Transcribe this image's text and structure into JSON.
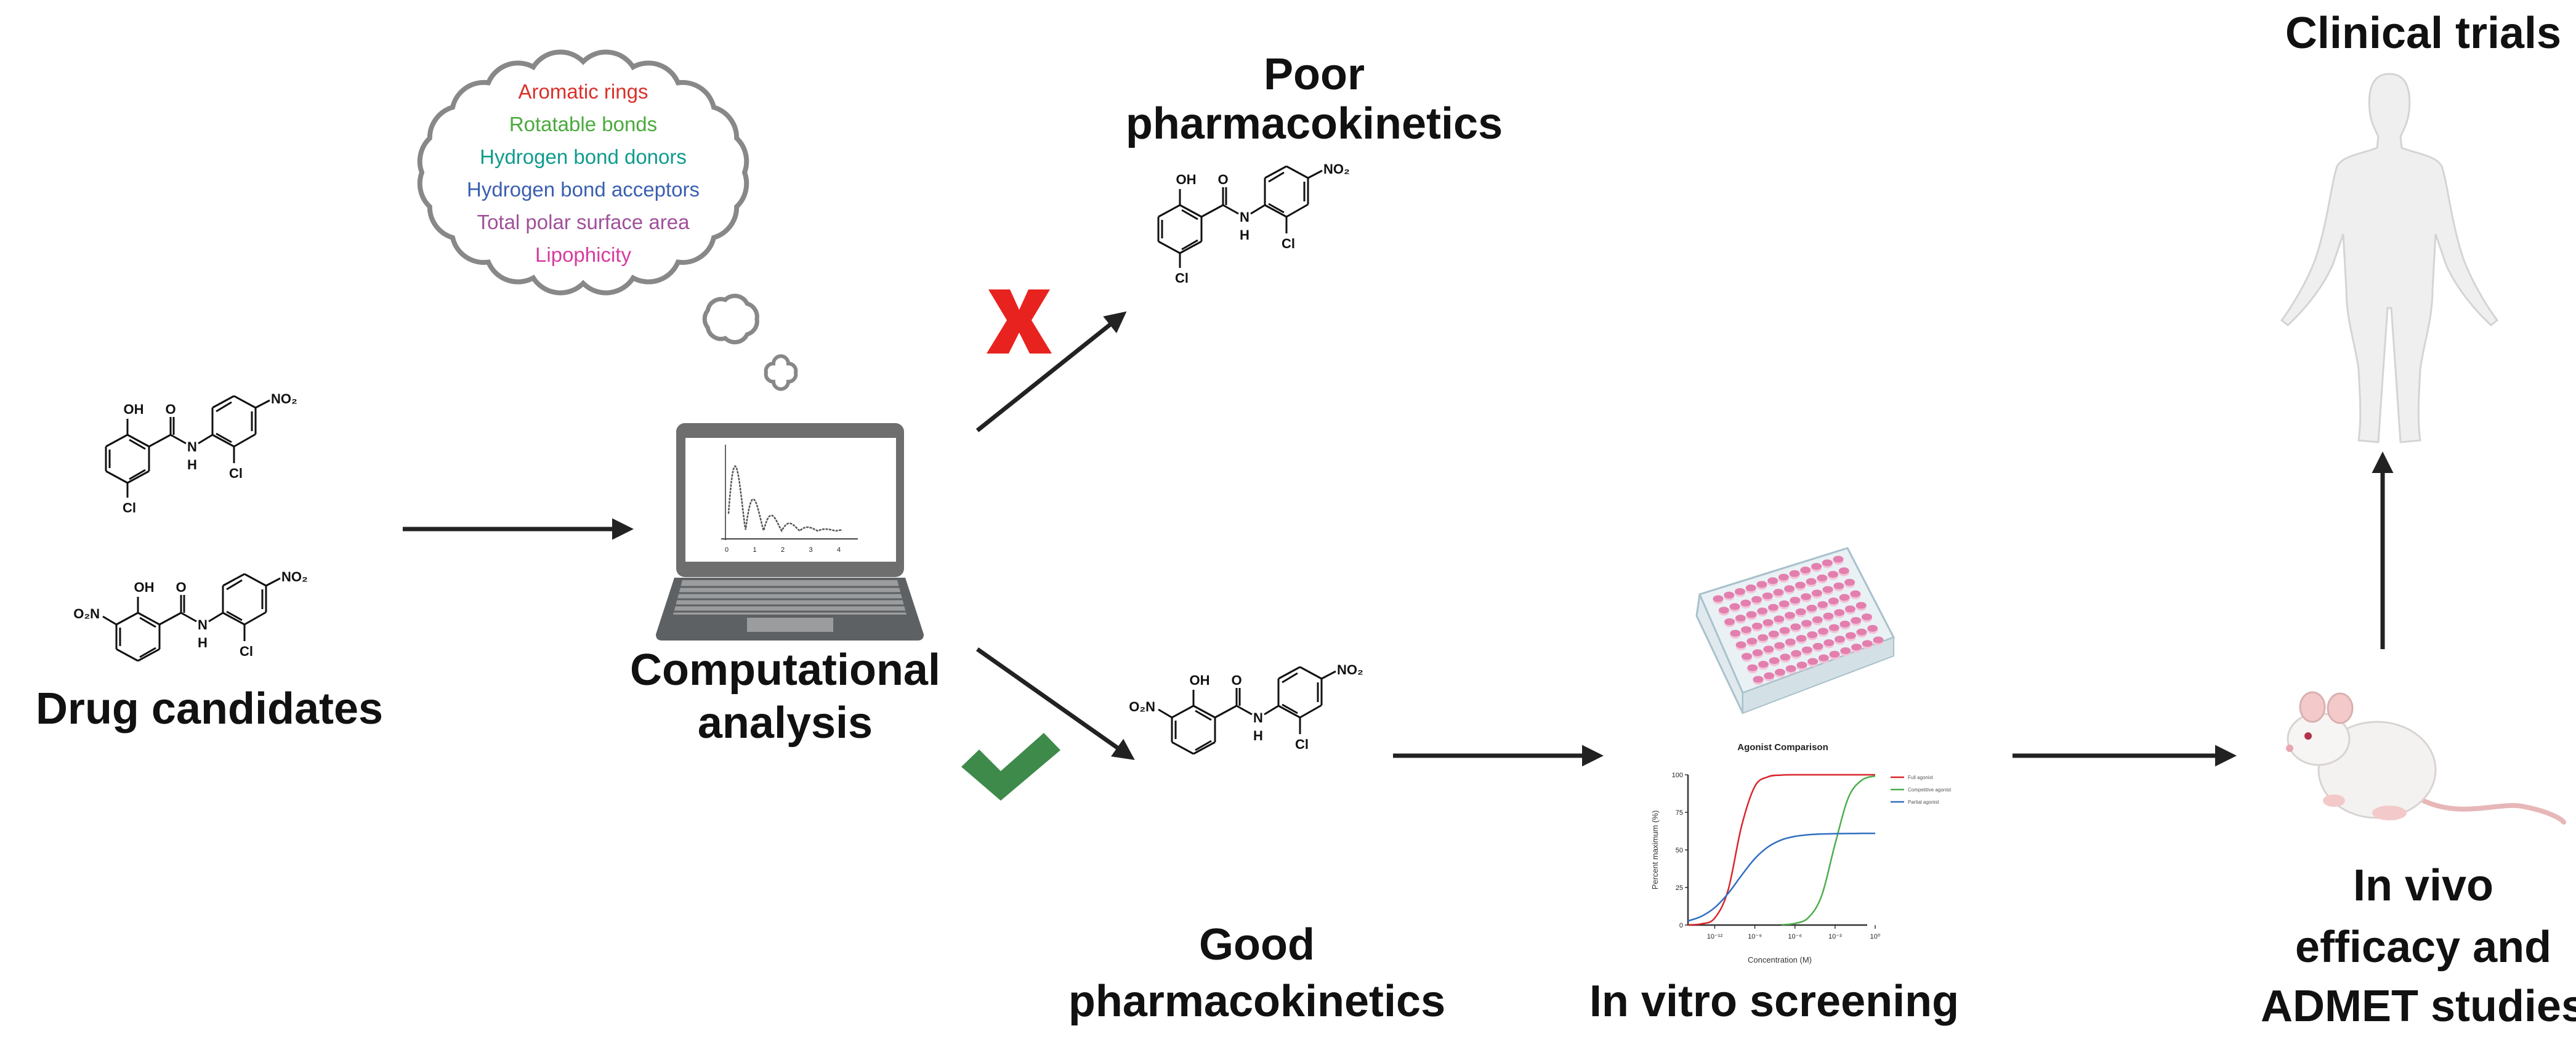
{
  "labels": {
    "drug_candidates": "Drug candidates",
    "computational_1": "Computational",
    "computational_2": "analysis",
    "poor_1": "Poor",
    "poor_2": "pharmacokinetics",
    "good_1": "Good",
    "good_2": "pharmacokinetics",
    "in_vitro": "In vitro screening",
    "in_vivo_1": "In vivo",
    "in_vivo_2": "efficacy and",
    "in_vivo_3": "ADMET studies",
    "clinical": "Clinical trials"
  },
  "cloud": {
    "items": [
      {
        "text": "Aromatic rings",
        "color": "#d9312b"
      },
      {
        "text": "Rotatable bonds",
        "color": "#4aaa3c"
      },
      {
        "text": "Hydrogen bond donors",
        "color": "#0f9b8e"
      },
      {
        "text": "Hydrogen bond acceptors",
        "color": "#3a5fb0"
      },
      {
        "text": "Total polar surface area",
        "color": "#a0509a"
      },
      {
        "text": "Lipophicity",
        "color": "#d63c9e"
      }
    ]
  },
  "marks": {
    "reject_icon": "red-x",
    "reject_color": "#e8231f",
    "accept_icon": "check-mark",
    "accept_color": "#3e8a4a"
  },
  "molecules": {
    "atoms": {
      "OH": "OH",
      "O": "O",
      "N": "N",
      "H": "H",
      "Cl": "Cl",
      "NO2": "NO₂",
      "O2N": "O₂N"
    },
    "candidate_1": "5-chloro variant",
    "candidate_2": "3-nitro variant"
  },
  "laptop_plot": {
    "ticks": [
      "0",
      "1",
      "2",
      "3",
      "4"
    ]
  },
  "chart_data": {
    "type": "line",
    "title": "Agonist Comparison",
    "xlabel": "Concentration (M)",
    "ylabel": "Percent maximum (%)",
    "xscale": "log",
    "xlim": [
      1e-14,
      1
    ],
    "ylim": [
      0,
      100
    ],
    "xticks": [
      1e-12,
      1e-09,
      1e-06,
      0.001,
      1
    ],
    "xtick_labels": [
      "10⁻¹²",
      "10⁻⁹",
      "10⁻⁶",
      "10⁻³",
      "10⁰"
    ],
    "yticks": [
      0,
      25,
      50,
      75,
      100
    ],
    "grid": false,
    "legend_position": "top-right",
    "series": [
      {
        "name": "Full agonist",
        "color": "#d9252b",
        "x": [
          1e-14,
          1e-13,
          1e-12,
          1e-11,
          1e-10,
          1e-09,
          1e-08,
          1e-07,
          1e-06,
          1e-05,
          0.0001,
          0.001,
          0.01,
          0.1,
          1
        ],
        "y": [
          0.1,
          0.8,
          4.6,
          23.2,
          65.6,
          92.3,
          98.7,
          99.8,
          100,
          100,
          100,
          100,
          100,
          100,
          100
        ]
      },
      {
        "name": "Competitive agonist",
        "color": "#4cae4c",
        "x": [
          1e-07,
          1e-06,
          1e-05,
          0.0001,
          0.001,
          0.01,
          0.1,
          1
        ],
        "y": [
          0.2,
          1.1,
          4.9,
          19.6,
          53.9,
          84.9,
          96.4,
          99.2
        ]
      },
      {
        "name": "Partial agonist",
        "color": "#2f6fc0",
        "x": [
          1e-14,
          1e-13,
          1e-12,
          1e-11,
          1e-10,
          1e-09,
          1e-08,
          1e-07,
          1e-06,
          1e-05,
          0.0001,
          0.001,
          0.01,
          0.1,
          1
        ],
        "y": [
          2.7,
          5.8,
          11.6,
          21.0,
          33.0,
          44.2,
          52.1,
          56.7,
          59.0,
          60.1,
          60.6,
          60.8,
          60.9,
          61,
          61
        ]
      }
    ]
  }
}
